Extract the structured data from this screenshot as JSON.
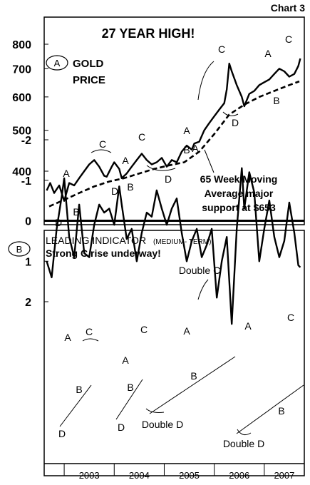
{
  "chart_label": "Chart 3",
  "chart_data": [
    {
      "type": "line",
      "panel": "A",
      "title": "27 YEAR HIGH!",
      "panel_label": "A",
      "series_label": [
        "GOLD",
        "PRICE"
      ],
      "scale": "log",
      "yticks": [
        400,
        500,
        600,
        700,
        800
      ],
      "ylim": [
        330,
        830
      ],
      "xlim": [
        2002.6,
        2007.8
      ],
      "series": [
        {
          "name": "GOLD PRICE",
          "x": [
            2002.65,
            2002.72,
            2002.8,
            2002.9,
            2003.0,
            2003.1,
            2003.2,
            2003.3,
            2003.4,
            2003.5,
            2003.6,
            2003.7,
            2003.8,
            2003.85,
            2003.95,
            2004.0,
            2004.1,
            2004.15,
            2004.25,
            2004.35,
            2004.45,
            2004.55,
            2004.65,
            2004.75,
            2004.85,
            2004.95,
            2005.05,
            2005.15,
            2005.25,
            2005.35,
            2005.45,
            2005.55,
            2005.6,
            2005.7,
            2005.8,
            2005.9,
            2006.0,
            2006.1,
            2006.2,
            2006.25,
            2006.3,
            2006.35,
            2006.45,
            2006.55,
            2006.6,
            2006.7,
            2006.8,
            2006.9,
            2007.0,
            2007.1,
            2007.2,
            2007.3,
            2007.4,
            2007.5,
            2007.6,
            2007.68,
            2007.72
          ],
          "values": [
            360,
            375,
            355,
            370,
            340,
            375,
            370,
            385,
            400,
            415,
            425,
            410,
            390,
            388,
            410,
            420,
            405,
            385,
            395,
            410,
            425,
            440,
            425,
            415,
            420,
            430,
            410,
            425,
            420,
            445,
            460,
            450,
            465,
            470,
            500,
            520,
            540,
            560,
            580,
            625,
            720,
            690,
            640,
            600,
            570,
            610,
            620,
            640,
            650,
            660,
            680,
            700,
            690,
            670,
            680,
            710,
            740
          ]
        },
        {
          "name": "65 Week Moving Average",
          "x": [
            2002.7,
            2003.0,
            2003.3,
            2003.6,
            2003.9,
            2004.2,
            2004.5,
            2004.8,
            2005.1,
            2005.4,
            2005.7,
            2006.0,
            2006.3,
            2006.6,
            2006.9,
            2007.2,
            2007.5,
            2007.7
          ],
          "values": [
            330,
            342,
            355,
            368,
            378,
            385,
            395,
            405,
            413,
            420,
            445,
            490,
            545,
            575,
            600,
            620,
            640,
            653
          ]
        }
      ],
      "annotations": [
        "A",
        "B",
        "C",
        "D",
        "A",
        "B",
        "C",
        "D",
        "A",
        "B",
        "C",
        "D",
        "A",
        "B",
        "C",
        "D",
        "A",
        "B",
        "C"
      ],
      "note": [
        "65 Week Moving",
        "Average major",
        "support at $653"
      ]
    },
    {
      "type": "line",
      "panel": "B",
      "panel_label": "B",
      "title": "LEADING INDICATOR",
      "subtitle": "(MEDIUM- TERM)",
      "tagline": "Strong C rise underway!",
      "yticks": [
        -2,
        -1,
        0,
        1,
        2
      ],
      "ylim": [
        -2,
        2.6
      ],
      "xlim": [
        2002.6,
        2007.8
      ],
      "xticklabels": [
        "2003",
        "2004",
        "2005",
        "2006",
        "2007"
      ],
      "series": [
        {
          "name": "LEADING INDICATOR",
          "x": [
            2002.65,
            2002.75,
            2002.85,
            2002.95,
            2003.0,
            2003.1,
            2003.2,
            2003.3,
            2003.4,
            2003.5,
            2003.6,
            2003.7,
            2003.8,
            2003.9,
            2004.0,
            2004.1,
            2004.15,
            2004.25,
            2004.35,
            2004.45,
            2004.55,
            2004.65,
            2004.75,
            2004.85,
            2004.95,
            2005.05,
            2005.15,
            2005.25,
            2005.35,
            2005.45,
            2005.55,
            2005.65,
            2005.75,
            2005.85,
            2005.95,
            2006.05,
            2006.15,
            2006.25,
            2006.35,
            2006.45,
            2006.55,
            2006.6,
            2006.7,
            2006.8,
            2006.9,
            2007.0,
            2007.1,
            2007.2,
            2007.3,
            2007.4,
            2007.5,
            2007.6,
            2007.68,
            2007.72
          ],
          "values": [
            1.0,
            1.4,
            0.2,
            -0.6,
            -1.05,
            0.4,
            0.9,
            -0.4,
            0.8,
            0.9,
            0.1,
            -0.4,
            -0.2,
            -0.3,
            0.1,
            -0.85,
            -0.4,
            0.45,
            0.2,
            1.0,
            0.3,
            -0.2,
            -0.1,
            -0.75,
            -0.3,
            0.1,
            -0.3,
            -0.55,
            0.3,
            1.0,
            0.5,
            0.2,
            0.9,
            0.6,
            0.2,
            1.9,
            1.0,
            0.4,
            2.55,
            0.2,
            -1.3,
            -0.3,
            -1.2,
            -0.7,
            1.0,
            0.2,
            -0.5,
            0.4,
            0.9,
            0.5,
            -0.45,
            0.3,
            1.1,
            1.15
          ]
        }
      ],
      "annotations": [
        "A",
        "B",
        "C",
        "D",
        "A",
        "B",
        "C",
        "D",
        "A",
        "B",
        "C",
        "Double C",
        "Double D",
        "A",
        "B",
        "C",
        "Double D"
      ]
    }
  ]
}
